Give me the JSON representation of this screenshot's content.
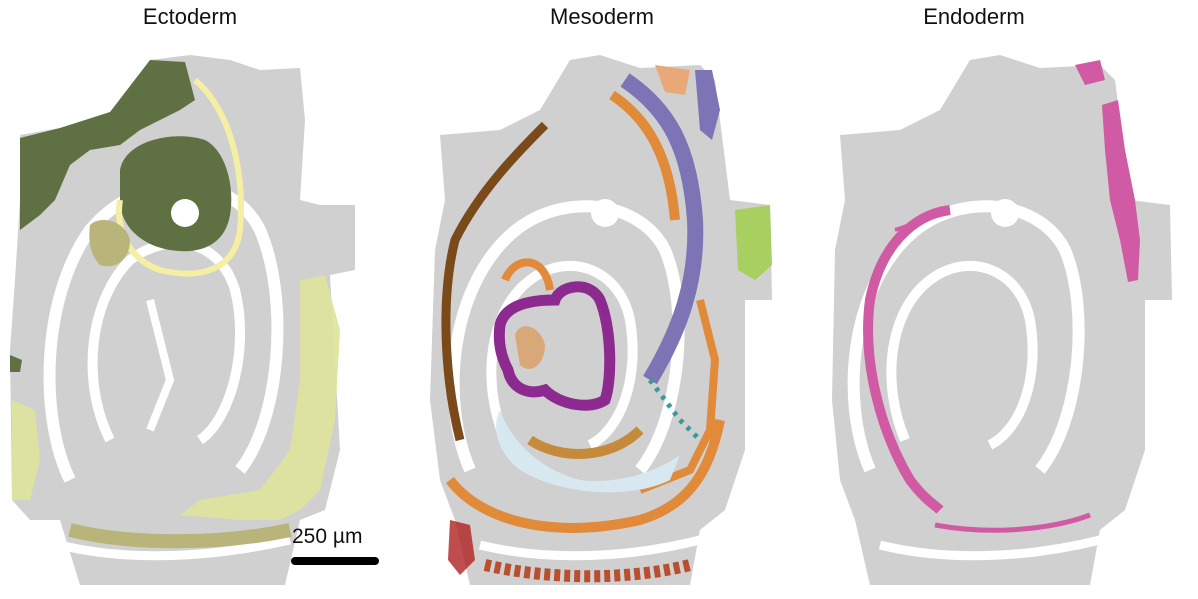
{
  "panels": [
    {
      "title": "Ectoderm"
    },
    {
      "title": "Mesoderm"
    },
    {
      "title": "Endoderm"
    }
  ],
  "scalebar": {
    "label": "250 µm"
  },
  "colors": {
    "background_tissue": "#d0d0d0",
    "white": "#ffffff",
    "ectoderm_dark": "#5f7143",
    "ectoderm_light": "#dfe39a",
    "ectoderm_yellow": "#f4efa2",
    "ectoderm_khaki": "#b9b47a",
    "meso_purple": "#8c2a8f",
    "meso_lavender": "#7c74b5",
    "meso_orange": "#e08a3a",
    "meso_brown": "#7a4a1a",
    "meso_lightblue": "#d8e8f0",
    "meso_lime": "#a8d060",
    "meso_teal": "#3a9a9a",
    "meso_red": "#b02020",
    "endo_pink": "#d05aa4"
  }
}
